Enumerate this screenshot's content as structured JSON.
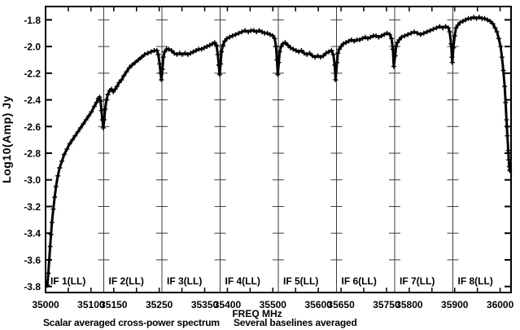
{
  "window": {
    "background": "#ffffff",
    "foreground": "#000000",
    "grid_color": "#3c3c3c"
  },
  "chart_data": {
    "type": "line",
    "title": "",
    "xlabel": "FREQ MHz",
    "ylabel": "Log10(Amp) Jy",
    "captions": [
      "Scalar averaged cross-power spectrum",
      "Several baselines averaged"
    ],
    "legend": [],
    "grid": "panel-dividers-only",
    "x_range": [
      35000,
      36024
    ],
    "y_axis_top": -1.7,
    "y_axis_bottom": -3.845,
    "y_ticks": [
      {
        "value": -1.8,
        "label": "-1.8"
      },
      {
        "value": -2.0,
        "label": "-2.0"
      },
      {
        "value": -2.2,
        "label": "-2.2"
      },
      {
        "value": -2.4,
        "label": "-2.4"
      },
      {
        "value": -2.6,
        "label": "-2.6"
      },
      {
        "value": -2.8,
        "label": "-2.8"
      },
      {
        "value": -3.0,
        "label": "-3.0"
      },
      {
        "value": -3.2,
        "label": "-3.2"
      },
      {
        "value": -3.4,
        "label": "-3.4"
      },
      {
        "value": -3.6,
        "label": "-3.6"
      },
      {
        "value": -3.8,
        "label": "-3.8"
      }
    ],
    "x_minor_tick_step": 50,
    "x_labeled_ticks": [
      {
        "value": 35000,
        "label": "35000"
      },
      {
        "value": 35100,
        "label": "35100"
      },
      {
        "value": 35150,
        "label": "35150"
      },
      {
        "value": 35250,
        "label": "35250"
      },
      {
        "value": 35350,
        "label": "35350"
      },
      {
        "value": 35400,
        "label": "35400"
      },
      {
        "value": 35500,
        "label": "35500"
      },
      {
        "value": 35600,
        "label": "35600"
      },
      {
        "value": 35650,
        "label": "35650"
      },
      {
        "value": 35750,
        "label": "35750"
      },
      {
        "value": 35800,
        "label": "35800"
      },
      {
        "value": 35900,
        "label": "35900"
      },
      {
        "value": 36000,
        "label": "36000"
      }
    ],
    "panels": [
      {
        "label": "IF 1(LL)",
        "start": 35000,
        "end": 35128
      },
      {
        "label": "IF 2(LL)",
        "start": 35128,
        "end": 35256
      },
      {
        "label": "IF 3(LL)",
        "start": 35256,
        "end": 35384
      },
      {
        "label": "IF 4(LL)",
        "start": 35384,
        "end": 35512
      },
      {
        "label": "IF 5(LL)",
        "start": 35512,
        "end": 35640
      },
      {
        "label": "IF 6(LL)",
        "start": 35640,
        "end": 35768
      },
      {
        "label": "IF 7(LL)",
        "start": 35768,
        "end": 35896
      },
      {
        "label": "IF 8(LL)",
        "start": 35896,
        "end": 36024
      }
    ],
    "series": [
      {
        "name": "scalar averaged cross-power spectrum",
        "marker": "plus",
        "color": "#000000",
        "points": [
          [
            35004,
            -3.79
          ],
          [
            35006,
            -3.7
          ],
          [
            35008,
            -3.6
          ],
          [
            35010,
            -3.5
          ],
          [
            35012,
            -3.41
          ],
          [
            35014,
            -3.32
          ],
          [
            35017,
            -3.22
          ],
          [
            35020,
            -3.13
          ],
          [
            35023,
            -3.05
          ],
          [
            35027,
            -2.97
          ],
          [
            35031,
            -2.91
          ],
          [
            35036,
            -2.86
          ],
          [
            35041,
            -2.81
          ],
          [
            35047,
            -2.77
          ],
          [
            35053,
            -2.73
          ],
          [
            35059,
            -2.7
          ],
          [
            35065,
            -2.67
          ],
          [
            35071,
            -2.64
          ],
          [
            35077,
            -2.61
          ],
          [
            35083,
            -2.58
          ],
          [
            35089,
            -2.55
          ],
          [
            35095,
            -2.52
          ],
          [
            35101,
            -2.49
          ],
          [
            35107,
            -2.45
          ],
          [
            35112,
            -2.42
          ],
          [
            35116,
            -2.39
          ],
          [
            35119,
            -2.38
          ],
          [
            35121,
            -2.41
          ],
          [
            35123,
            -2.48
          ],
          [
            35125,
            -2.55
          ],
          [
            35127,
            -2.61
          ],
          [
            35129,
            -2.55
          ],
          [
            35131,
            -2.47
          ],
          [
            35134,
            -2.4
          ],
          [
            35137,
            -2.36
          ],
          [
            35141,
            -2.33
          ],
          [
            35145,
            -2.32
          ],
          [
            35149,
            -2.34
          ],
          [
            35153,
            -2.32
          ],
          [
            35157,
            -2.3
          ],
          [
            35162,
            -2.27
          ],
          [
            35167,
            -2.25
          ],
          [
            35172,
            -2.22
          ],
          [
            35178,
            -2.19
          ],
          [
            35184,
            -2.16
          ],
          [
            35190,
            -2.14
          ],
          [
            35197,
            -2.12
          ],
          [
            35204,
            -2.1
          ],
          [
            35211,
            -2.08
          ],
          [
            35218,
            -2.06
          ],
          [
            35225,
            -2.05
          ],
          [
            35232,
            -2.04
          ],
          [
            35239,
            -2.03
          ],
          [
            35245,
            -2.03
          ],
          [
            35248,
            -2.06
          ],
          [
            35251,
            -2.13
          ],
          [
            35253,
            -2.2
          ],
          [
            35255,
            -2.25
          ],
          [
            35257,
            -2.17
          ],
          [
            35259,
            -2.08
          ],
          [
            35262,
            -2.04
          ],
          [
            35266,
            -2.02
          ],
          [
            35271,
            -2.02
          ],
          [
            35277,
            -2.03
          ],
          [
            35283,
            -2.05
          ],
          [
            35289,
            -2.06
          ],
          [
            35295,
            -2.05
          ],
          [
            35301,
            -2.06
          ],
          [
            35307,
            -2.05
          ],
          [
            35313,
            -2.06
          ],
          [
            35319,
            -2.05
          ],
          [
            35325,
            -2.04
          ],
          [
            35331,
            -2.03
          ],
          [
            35337,
            -2.02
          ],
          [
            35343,
            -2.02
          ],
          [
            35349,
            -2.01
          ],
          [
            35355,
            -2.0
          ],
          [
            35361,
            -1.99
          ],
          [
            35367,
            -1.98
          ],
          [
            35372,
            -1.97
          ],
          [
            35376,
            -1.99
          ],
          [
            35379,
            -2.06
          ],
          [
            35381,
            -2.14
          ],
          [
            35383,
            -2.21
          ],
          [
            35385,
            -2.13
          ],
          [
            35387,
            -2.04
          ],
          [
            35390,
            -1.99
          ],
          [
            35394,
            -1.96
          ],
          [
            35399,
            -1.94
          ],
          [
            35405,
            -1.93
          ],
          [
            35411,
            -1.92
          ],
          [
            35418,
            -1.91
          ],
          [
            35425,
            -1.9
          ],
          [
            35432,
            -1.89
          ],
          [
            35439,
            -1.88
          ],
          [
            35446,
            -1.89
          ],
          [
            35452,
            -1.88
          ],
          [
            35458,
            -1.88
          ],
          [
            35464,
            -1.89
          ],
          [
            35470,
            -1.88
          ],
          [
            35476,
            -1.89
          ],
          [
            35482,
            -1.9
          ],
          [
            35488,
            -1.9
          ],
          [
            35494,
            -1.91
          ],
          [
            35500,
            -1.92
          ],
          [
            35504,
            -1.94
          ],
          [
            35507,
            -2.0
          ],
          [
            35509,
            -2.1
          ],
          [
            35511,
            -2.21
          ],
          [
            35513,
            -2.12
          ],
          [
            35515,
            -2.04
          ],
          [
            35518,
            -2.0
          ],
          [
            35522,
            -1.98
          ],
          [
            35527,
            -1.97
          ],
          [
            35533,
            -1.99
          ],
          [
            35539,
            -2.01
          ],
          [
            35545,
            -2.02
          ],
          [
            35551,
            -2.03
          ],
          [
            35557,
            -2.04
          ],
          [
            35563,
            -2.03
          ],
          [
            35569,
            -2.05
          ],
          [
            35575,
            -2.06
          ],
          [
            35581,
            -2.05
          ],
          [
            35587,
            -2.07
          ],
          [
            35593,
            -2.08
          ],
          [
            35599,
            -2.07
          ],
          [
            35605,
            -2.08
          ],
          [
            35611,
            -2.07
          ],
          [
            35617,
            -2.05
          ],
          [
            35623,
            -2.04
          ],
          [
            35629,
            -2.03
          ],
          [
            35633,
            -2.06
          ],
          [
            35636,
            -2.14
          ],
          [
            35638,
            -2.25
          ],
          [
            35641,
            -2.12
          ],
          [
            35643,
            -2.05
          ],
          [
            35646,
            -2.02
          ],
          [
            35650,
            -2.0
          ],
          [
            35655,
            -1.98
          ],
          [
            35661,
            -1.97
          ],
          [
            35667,
            -1.96
          ],
          [
            35673,
            -1.95
          ],
          [
            35679,
            -1.96
          ],
          [
            35685,
            -1.95
          ],
          [
            35691,
            -1.95
          ],
          [
            35697,
            -1.94
          ],
          [
            35703,
            -1.93
          ],
          [
            35709,
            -1.94
          ],
          [
            35715,
            -1.93
          ],
          [
            35721,
            -1.92
          ],
          [
            35727,
            -1.92
          ],
          [
            35733,
            -1.93
          ],
          [
            35739,
            -1.92
          ],
          [
            35745,
            -1.91
          ],
          [
            35751,
            -1.9
          ],
          [
            35757,
            -1.91
          ],
          [
            35761,
            -1.94
          ],
          [
            35764,
            -2.02
          ],
          [
            35766,
            -2.15
          ],
          [
            35769,
            -2.07
          ],
          [
            35771,
            -2.0
          ],
          [
            35774,
            -1.97
          ],
          [
            35778,
            -1.95
          ],
          [
            35783,
            -1.93
          ],
          [
            35790,
            -1.92
          ],
          [
            35797,
            -1.91
          ],
          [
            35804,
            -1.9
          ],
          [
            35811,
            -1.89
          ],
          [
            35818,
            -1.9
          ],
          [
            35825,
            -1.91
          ],
          [
            35832,
            -1.9
          ],
          [
            35839,
            -1.89
          ],
          [
            35846,
            -1.88
          ],
          [
            35853,
            -1.87
          ],
          [
            35860,
            -1.86
          ],
          [
            35867,
            -1.85
          ],
          [
            35874,
            -1.86
          ],
          [
            35880,
            -1.85
          ],
          [
            35886,
            -1.86
          ],
          [
            35889,
            -1.89
          ],
          [
            35892,
            -1.98
          ],
          [
            35894,
            -2.08
          ],
          [
            35895,
            -2.12
          ],
          [
            35897,
            -2.01
          ],
          [
            35900,
            -1.92
          ],
          [
            35903,
            -1.86
          ],
          [
            35907,
            -1.84
          ],
          [
            35912,
            -1.82
          ],
          [
            35918,
            -1.81
          ],
          [
            35924,
            -1.8
          ],
          [
            35930,
            -1.79
          ],
          [
            35936,
            -1.79
          ],
          [
            35942,
            -1.78
          ],
          [
            35948,
            -1.79
          ],
          [
            35954,
            -1.78
          ],
          [
            35960,
            -1.79
          ],
          [
            35966,
            -1.79
          ],
          [
            35972,
            -1.8
          ],
          [
            35978,
            -1.81
          ],
          [
            35984,
            -1.83
          ],
          [
            35989,
            -1.86
          ],
          [
            35993,
            -1.89
          ],
          [
            35997,
            -1.94
          ],
          [
            36001,
            -2.0
          ],
          [
            36004,
            -2.08
          ],
          [
            36007,
            -2.18
          ],
          [
            36010,
            -2.3
          ],
          [
            36012,
            -2.42
          ],
          [
            36014,
            -2.55
          ],
          [
            36016,
            -2.67
          ],
          [
            36018,
            -2.78
          ],
          [
            36019,
            -2.85
          ],
          [
            36020,
            -2.9
          ],
          [
            36021,
            -2.93
          ]
        ]
      }
    ]
  }
}
